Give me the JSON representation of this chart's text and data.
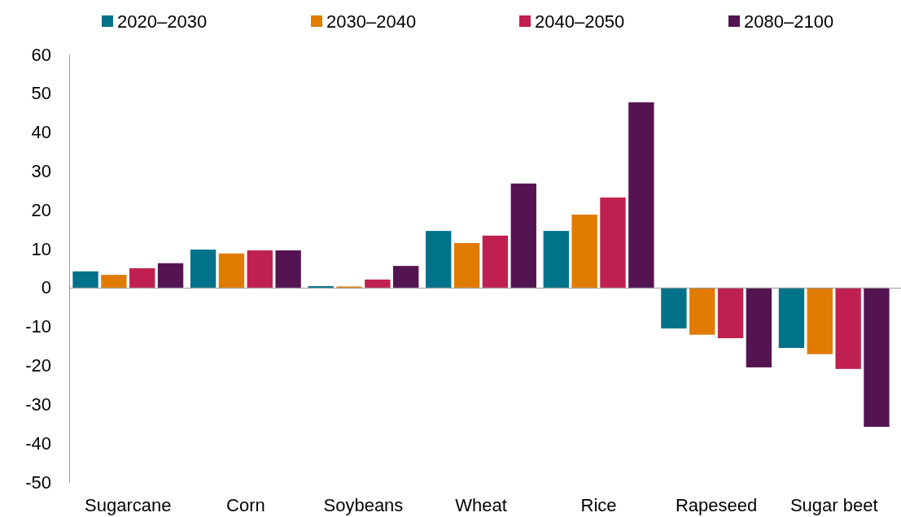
{
  "chart_data": {
    "type": "bar",
    "categories": [
      "Sugarcane",
      "Corn",
      "Soybeans",
      "Wheat",
      "Rice",
      "Rapeseed",
      "Sugar beet"
    ],
    "series": [
      {
        "name": "2020–2030",
        "color": "#00728a",
        "values": [
          4.2,
          9.8,
          0.4,
          14.6,
          14.6,
          -10.5,
          -15.5
        ]
      },
      {
        "name": "2030–2040",
        "color": "#e07b00",
        "values": [
          3.3,
          8.8,
          0.3,
          11.5,
          18.8,
          -12.1,
          -17.1
        ]
      },
      {
        "name": "2040–2050",
        "color": "#c0204f",
        "values": [
          5.0,
          9.6,
          2.1,
          13.4,
          23.2,
          -13.0,
          -20.9
        ]
      },
      {
        "name": "2080–2100",
        "color": "#541452",
        "values": [
          6.3,
          9.6,
          5.6,
          26.8,
          47.7,
          -20.5,
          -35.8
        ]
      }
    ],
    "ylim": [
      -50,
      60
    ],
    "yticks": [
      -50,
      -40,
      -30,
      -20,
      -10,
      0,
      10,
      20,
      30,
      40,
      50,
      60
    ],
    "legend": "top"
  }
}
